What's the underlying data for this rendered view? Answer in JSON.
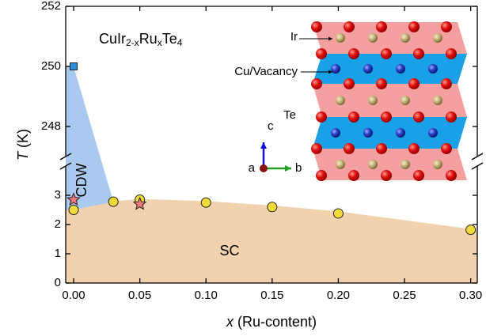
{
  "chart_data": {
    "type": "scatter",
    "title_parts": [
      "CuIr",
      "2-x",
      "Ru",
      "x",
      "Te",
      "4"
    ],
    "xlabel_parts": [
      "x",
      " (Ru-content)"
    ],
    "ylabel_parts": [
      "T",
      " (K)"
    ],
    "xlim": [
      -0.006,
      0.305
    ],
    "xticks": [
      {
        "value": 0,
        "label": "0.00"
      },
      {
        "value": 0.05,
        "label": "0.05"
      },
      {
        "value": 0.1,
        "label": "0.10"
      },
      {
        "value": 0.15,
        "label": "0.15"
      },
      {
        "value": 0.2,
        "label": "0.20"
      },
      {
        "value": 0.25,
        "label": "0.25"
      },
      {
        "value": 0.3,
        "label": "0.30"
      }
    ],
    "ylim": [
      0,
      4
    ],
    "yticks": [
      0,
      1,
      2,
      3
    ],
    "ylim_upper": [
      247,
      252
    ],
    "yticks_upper": [
      248,
      250,
      252
    ],
    "series": [
      {
        "marker": "circle",
        "color": "#f2da3a",
        "x": [
          0,
          0.03,
          0.05,
          0.1,
          0.15,
          0.2,
          0.3
        ],
        "values": [
          2.5,
          2.78,
          2.85,
          2.75,
          2.6,
          2.38,
          1.82
        ]
      },
      {
        "marker": "star",
        "color": "#f07a7a",
        "x": [
          0,
          0.05
        ],
        "values": [
          2.85,
          2.7
        ]
      },
      {
        "marker": "square",
        "color": "#2a8fd8",
        "axis": "upper",
        "x": [
          0
        ],
        "values": [
          250
        ]
      }
    ],
    "regions": [
      {
        "label": "SC",
        "color": "#f2d2ae",
        "x": [
          -0.006,
          0,
          0.03,
          0.05,
          0.1,
          0.15,
          0.2,
          0.3,
          0.305,
          0.305,
          -0.006
        ],
        "values": [
          2.5,
          2.5,
          2.8,
          2.87,
          2.8,
          2.65,
          2.45,
          1.85,
          1.8,
          0,
          0
        ]
      },
      {
        "label": "CDW",
        "color": "#a9c9ef",
        "x": [
          -0.006,
          0,
          0.03,
          0,
          -0.006
        ],
        "values": [
          250,
          250,
          2.78,
          2.5,
          2.5
        ]
      }
    ],
    "inset": {
      "labels": [
        "Ir",
        "Cu/Vacancy",
        "Te"
      ],
      "axes": [
        "c",
        "a",
        "b"
      ]
    }
  }
}
